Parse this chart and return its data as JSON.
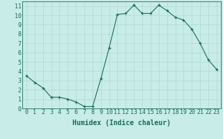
{
  "x": [
    0,
    1,
    2,
    3,
    4,
    5,
    6,
    7,
    8,
    9,
    10,
    11,
    12,
    13,
    14,
    15,
    16,
    17,
    18,
    19,
    20,
    21,
    22,
    23
  ],
  "y": [
    3.5,
    2.8,
    2.2,
    1.2,
    1.2,
    1.0,
    0.7,
    0.2,
    0.2,
    3.2,
    6.5,
    10.1,
    10.2,
    11.1,
    10.2,
    10.2,
    11.1,
    10.5,
    9.8,
    9.5,
    8.5,
    7.0,
    5.2,
    4.2
  ],
  "xlabel": "Humidex (Indice chaleur)",
  "line_color": "#1a6b5a",
  "marker_color": "#1a6b5a",
  "bg_color": "#c8ece8",
  "grid_color": "#b0d8d4",
  "xlim": [
    -0.5,
    23.5
  ],
  "ylim": [
    0,
    11.5
  ],
  "xticks": [
    0,
    1,
    2,
    3,
    4,
    5,
    6,
    7,
    8,
    9,
    10,
    11,
    12,
    13,
    14,
    15,
    16,
    17,
    18,
    19,
    20,
    21,
    22,
    23
  ],
  "yticks": [
    0,
    1,
    2,
    3,
    4,
    5,
    6,
    7,
    8,
    9,
    10,
    11
  ],
  "xlabel_fontsize": 7,
  "tick_fontsize": 6,
  "label_color": "#1a6b5a"
}
